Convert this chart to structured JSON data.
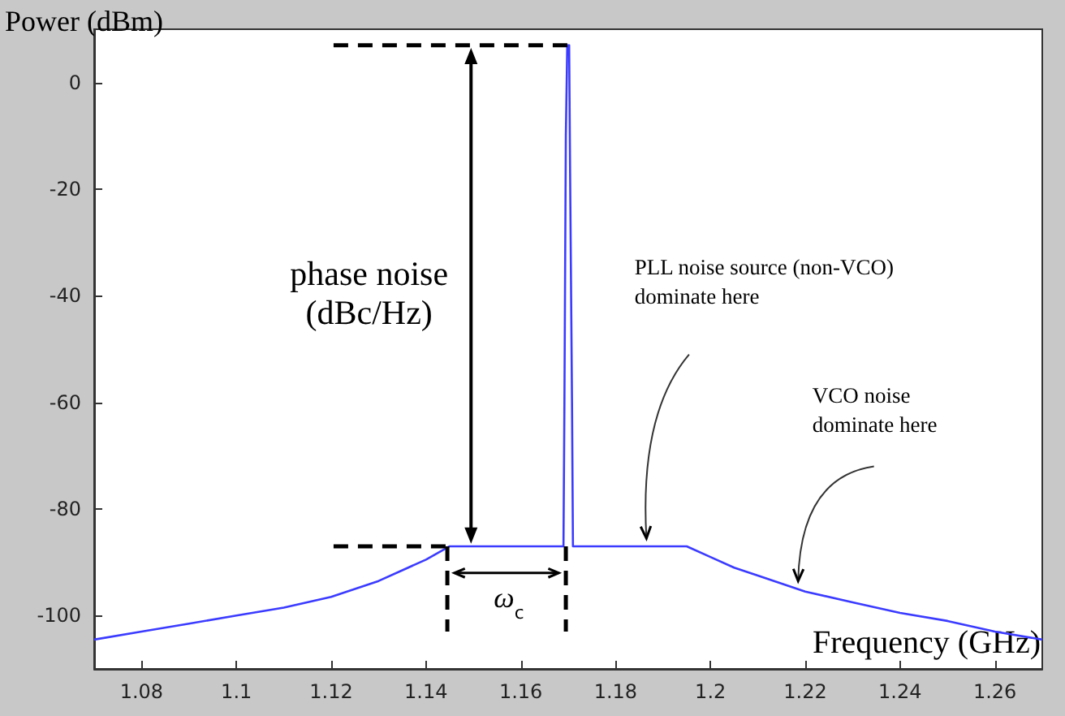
{
  "chart_data": {
    "type": "line",
    "xlabel": "Frequency (GHz)",
    "ylabel": "Power (dBm)",
    "xlim": [
      1.07,
      1.27
    ],
    "xticks": [
      1.08,
      1.1,
      1.12,
      1.14,
      1.16,
      1.18,
      1.2,
      1.22,
      1.24,
      1.26
    ],
    "ylim": [
      -110,
      10
    ],
    "yticks": [
      -100,
      -80,
      -60,
      -40,
      -20,
      0
    ],
    "grid": false,
    "marker": "none",
    "line_style": "solid",
    "series": [
      {
        "color": "#3b3bff",
        "x": [
          1.07,
          1.08,
          1.09,
          1.1,
          1.11,
          1.12,
          1.125,
          1.13,
          1.135,
          1.14,
          1.145,
          1.169,
          1.1692,
          1.1695,
          1.1698,
          1.1702,
          1.1704,
          1.1708,
          1.171,
          1.195,
          1.2,
          1.205,
          1.21,
          1.22,
          1.23,
          1.24,
          1.25,
          1.26,
          1.27
        ],
        "values": [
          -104.5,
          -103,
          -101.5,
          -100,
          -98.5,
          -96.5,
          -95,
          -93.5,
          -91.5,
          -89.5,
          -87,
          -87,
          -60,
          -10,
          7,
          7,
          -17,
          -60,
          -87,
          -87,
          -89,
          -91,
          -92.5,
          -95.5,
          -97.5,
          -99.5,
          -101,
          -103,
          -104.5
        ]
      }
    ],
    "annotations": [
      "phase noise\n(dBc/Hz)",
      "ω$_{c}$",
      "PLL noise source (non-VCO)\ndominate here",
      "VCO noise\ndominate here"
    ]
  }
}
